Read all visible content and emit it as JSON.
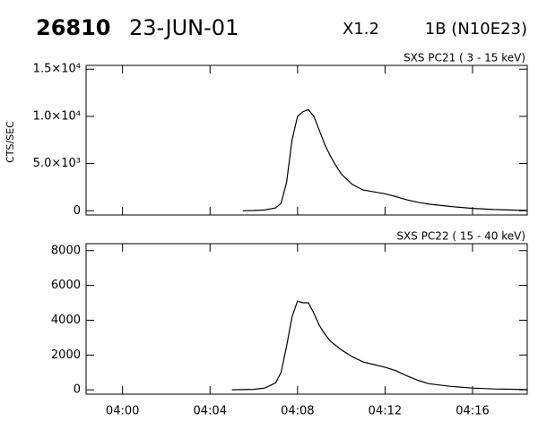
{
  "header": {
    "id": "26810",
    "date": "23-JUN-01",
    "class": "X1.2",
    "flare": "1B (N10E23)"
  },
  "chart_data": [
    {
      "type": "line",
      "label": "SXS PC21  (  3 - 15 keV)",
      "ylabel": "CTS/SEC",
      "color": "#000000",
      "x": [
        "04:05:30",
        "04:06:00",
        "04:06:30",
        "04:07:00",
        "04:07:15",
        "04:07:30",
        "04:07:45",
        "04:08:00",
        "04:08:15",
        "04:08:30",
        "04:08:45",
        "04:09:00",
        "04:09:15",
        "04:09:30",
        "04:09:45",
        "04:10:00",
        "04:10:30",
        "04:11:00",
        "04:11:30",
        "04:12:00",
        "04:12:30",
        "04:13:00",
        "04:13:30",
        "04:14:00",
        "04:15:00",
        "04:16:00",
        "04:17:00",
        "04:18:00",
        "04:18:30"
      ],
      "values": [
        0,
        20,
        80,
        300,
        800,
        3000,
        7500,
        10000,
        10500,
        10700,
        10000,
        8500,
        7000,
        5800,
        4800,
        3900,
        2800,
        2200,
        2000,
        1800,
        1500,
        1150,
        900,
        700,
        450,
        250,
        130,
        60,
        40
      ],
      "xlim": [
        "03:58:20",
        "04:18:30"
      ],
      "xticks": [
        "04:00",
        "04:04",
        "04:08",
        "04:12",
        "04:16"
      ],
      "xtick_labels": false,
      "ylim": [
        -450,
        15400
      ],
      "yticks": [
        0,
        {
          "value": 5000,
          "label": "5.0×10³"
        },
        {
          "value": 10000,
          "label": "1.0×10⁴"
        },
        {
          "value": 15000,
          "label": "1.5×10⁴"
        }
      ]
    },
    {
      "type": "line",
      "label": "SXS PC22  ( 15 - 40 keV)",
      "color": "#000000",
      "x": [
        "04:05:00",
        "04:06:00",
        "04:06:30",
        "04:07:00",
        "04:07:15",
        "04:07:30",
        "04:07:45",
        "04:08:00",
        "04:08:15",
        "04:08:30",
        "04:08:45",
        "04:09:00",
        "04:09:15",
        "04:09:30",
        "04:10:00",
        "04:10:30",
        "04:11:00",
        "04:11:30",
        "04:12:00",
        "04:12:30",
        "04:13:00",
        "04:13:30",
        "04:14:00",
        "04:15:00",
        "04:16:00",
        "04:17:00",
        "04:18:00",
        "04:18:30"
      ],
      "values": [
        0,
        30,
        100,
        400,
        1000,
        2500,
        4200,
        5100,
        5000,
        5000,
        4400,
        3700,
        3200,
        2800,
        2300,
        1900,
        1600,
        1450,
        1300,
        1100,
        800,
        550,
        350,
        200,
        100,
        50,
        30,
        20
      ],
      "xlim": [
        "03:58:20",
        "04:18:30"
      ],
      "xticks": [
        "04:00",
        "04:04",
        "04:08",
        "04:12",
        "04:16"
      ],
      "xtick_labels": true,
      "ylim": [
        -250,
        8400
      ],
      "yticks": [
        0,
        2000,
        4000,
        6000,
        8000
      ]
    }
  ]
}
